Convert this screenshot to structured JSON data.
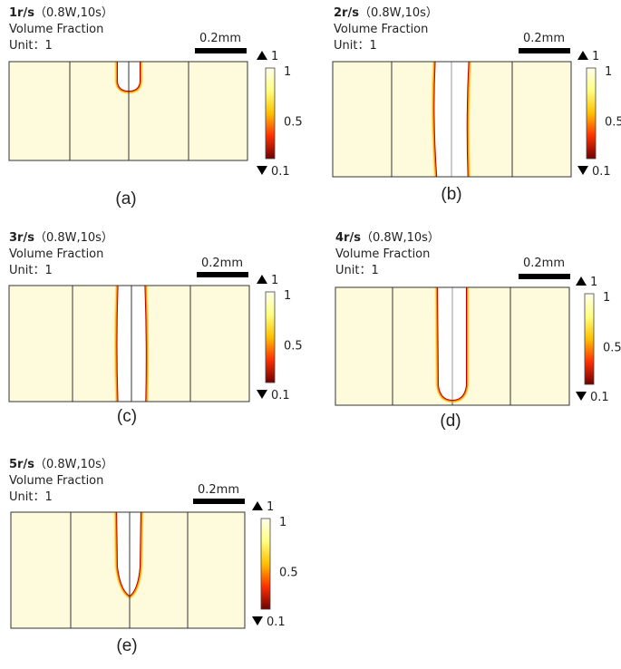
{
  "panels": [
    {
      "speed": "1r/s",
      "params": "（0.8W,10s）",
      "quantity": "Volume Fraction",
      "unit": "Unit：1",
      "scale": "0.2mm",
      "max": 1,
      "min": 0.1,
      "ticks": [
        1,
        0.5
      ],
      "caption": "(a)"
    },
    {
      "speed": "2r/s",
      "params": "（0.8W,10s）",
      "quantity": "Volume Fraction",
      "unit": "Unit：1",
      "scale": "0.2mm",
      "max": 1,
      "min": 0.1,
      "ticks": [
        1,
        0.5
      ],
      "caption": "(b)"
    },
    {
      "speed": "3r/s",
      "params": "（0.8W,10s）",
      "quantity": "Volume Fraction",
      "unit": "Unit：1",
      "scale": "0.2mm",
      "max": 1,
      "min": 0.1,
      "ticks": [
        1,
        0.5
      ],
      "caption": "(c)"
    },
    {
      "speed": "4r/s",
      "params": "（0.8W,10s）",
      "quantity": "Volume Fraction",
      "unit": "Unit：1",
      "scale": "0.2mm",
      "max": 1,
      "min": 0.1,
      "ticks": [
        1,
        0.5
      ],
      "caption": "(d)"
    },
    {
      "speed": "5r/s",
      "params": "（0.8W,10s）",
      "quantity": "Volume Fraction",
      "unit": "Unit：1",
      "scale": "0.2mm",
      "max": 1,
      "min": 0.1,
      "ticks": [
        1,
        0.5
      ],
      "caption": "(e)"
    }
  ]
}
